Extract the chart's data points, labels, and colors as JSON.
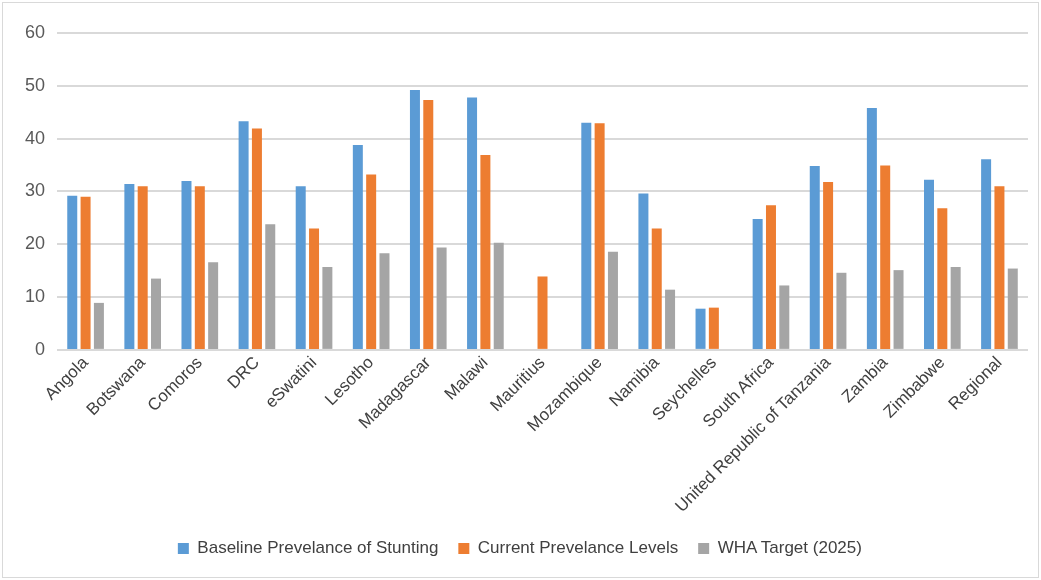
{
  "chart_data": {
    "type": "bar",
    "categories": [
      "Angola",
      "Botswana",
      "Comoros",
      "DRC",
      "eSwatini",
      "Lesotho",
      "Madagascar",
      "Malawi",
      "Mauritius",
      "Mozambique",
      "Namibia",
      "Seychelles",
      "South Africa",
      "United Republic of Tanzania",
      "Zambia",
      "Zimbabwe",
      "Regional"
    ],
    "series": [
      {
        "name": "Baseline Prevelance of Stunting",
        "color": "#5b9bd5",
        "values": [
          29.2,
          31.4,
          32.0,
          43.3,
          31.0,
          38.8,
          49.2,
          47.8,
          null,
          43.0,
          29.6,
          7.8,
          24.8,
          34.8,
          45.8,
          32.2,
          36.1
        ]
      },
      {
        "name": "Current Prevelance Levels",
        "color": "#ed7d31",
        "values": [
          29.0,
          31.0,
          31.0,
          41.9,
          23.0,
          33.2,
          47.3,
          36.9,
          13.9,
          42.9,
          23.0,
          8.0,
          27.4,
          31.8,
          34.9,
          26.8,
          31.0
        ]
      },
      {
        "name": "WHA Target (2025)",
        "color": "#a5a5a5",
        "values": [
          8.9,
          13.5,
          16.6,
          23.8,
          15.7,
          18.3,
          19.4,
          20.3,
          null,
          18.6,
          11.4,
          null,
          12.2,
          14.6,
          15.1,
          15.7,
          15.4
        ]
      }
    ],
    "ylim": [
      0,
      60
    ],
    "yticks": [
      0,
      10,
      20,
      30,
      40,
      50,
      60
    ],
    "grid": "y",
    "legend": "bottom"
  }
}
